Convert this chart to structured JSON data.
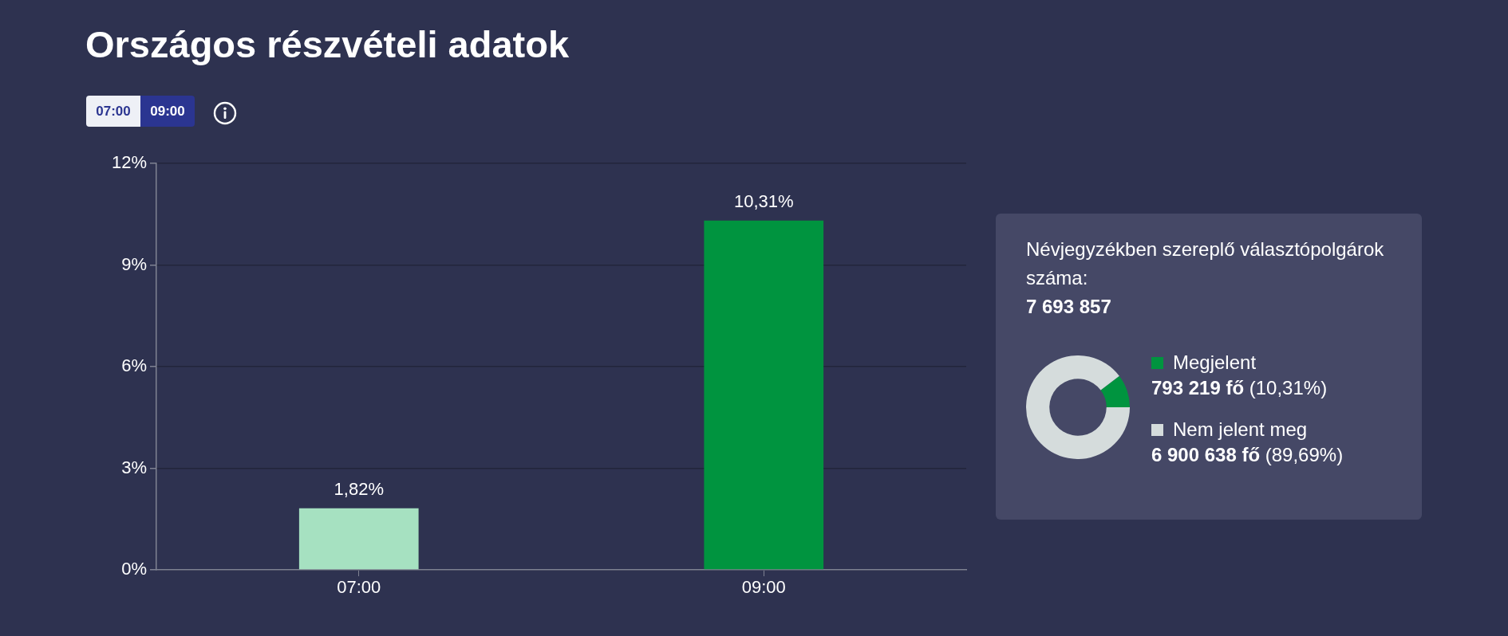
{
  "chart_data": [
    {
      "type": "bar",
      "title": "Országos részvételi adatok",
      "categories": [
        "07:00",
        "09:00"
      ],
      "values": [
        1.82,
        10.31
      ],
      "colors": [
        "#a6e1c1",
        "#00943f"
      ],
      "value_labels": [
        "1,82%",
        "10,31%"
      ],
      "ylim": [
        0,
        12
      ],
      "yticks": [
        {
          "value": 0,
          "label": "0%"
        },
        {
          "value": 3,
          "label": "3%"
        },
        {
          "value": 6,
          "label": "6%"
        },
        {
          "value": 9,
          "label": "9%"
        },
        {
          "value": 12,
          "label": "12%"
        }
      ],
      "grid": "y"
    },
    {
      "type": "donut",
      "title": "Névjegyzékben szereplő választópolgárok száma:",
      "subtitle": "7 693 857",
      "categories": [
        "Megjelent",
        "Nem jelent meg"
      ],
      "values": [
        793219,
        6900638
      ],
      "colors": [
        "#00943f",
        "#d5dcdc"
      ],
      "value_labels": [
        "793 219 fő (10,31%)",
        "6 900 638 fő (89,69%)"
      ],
      "legend": "right"
    }
  ]
}
